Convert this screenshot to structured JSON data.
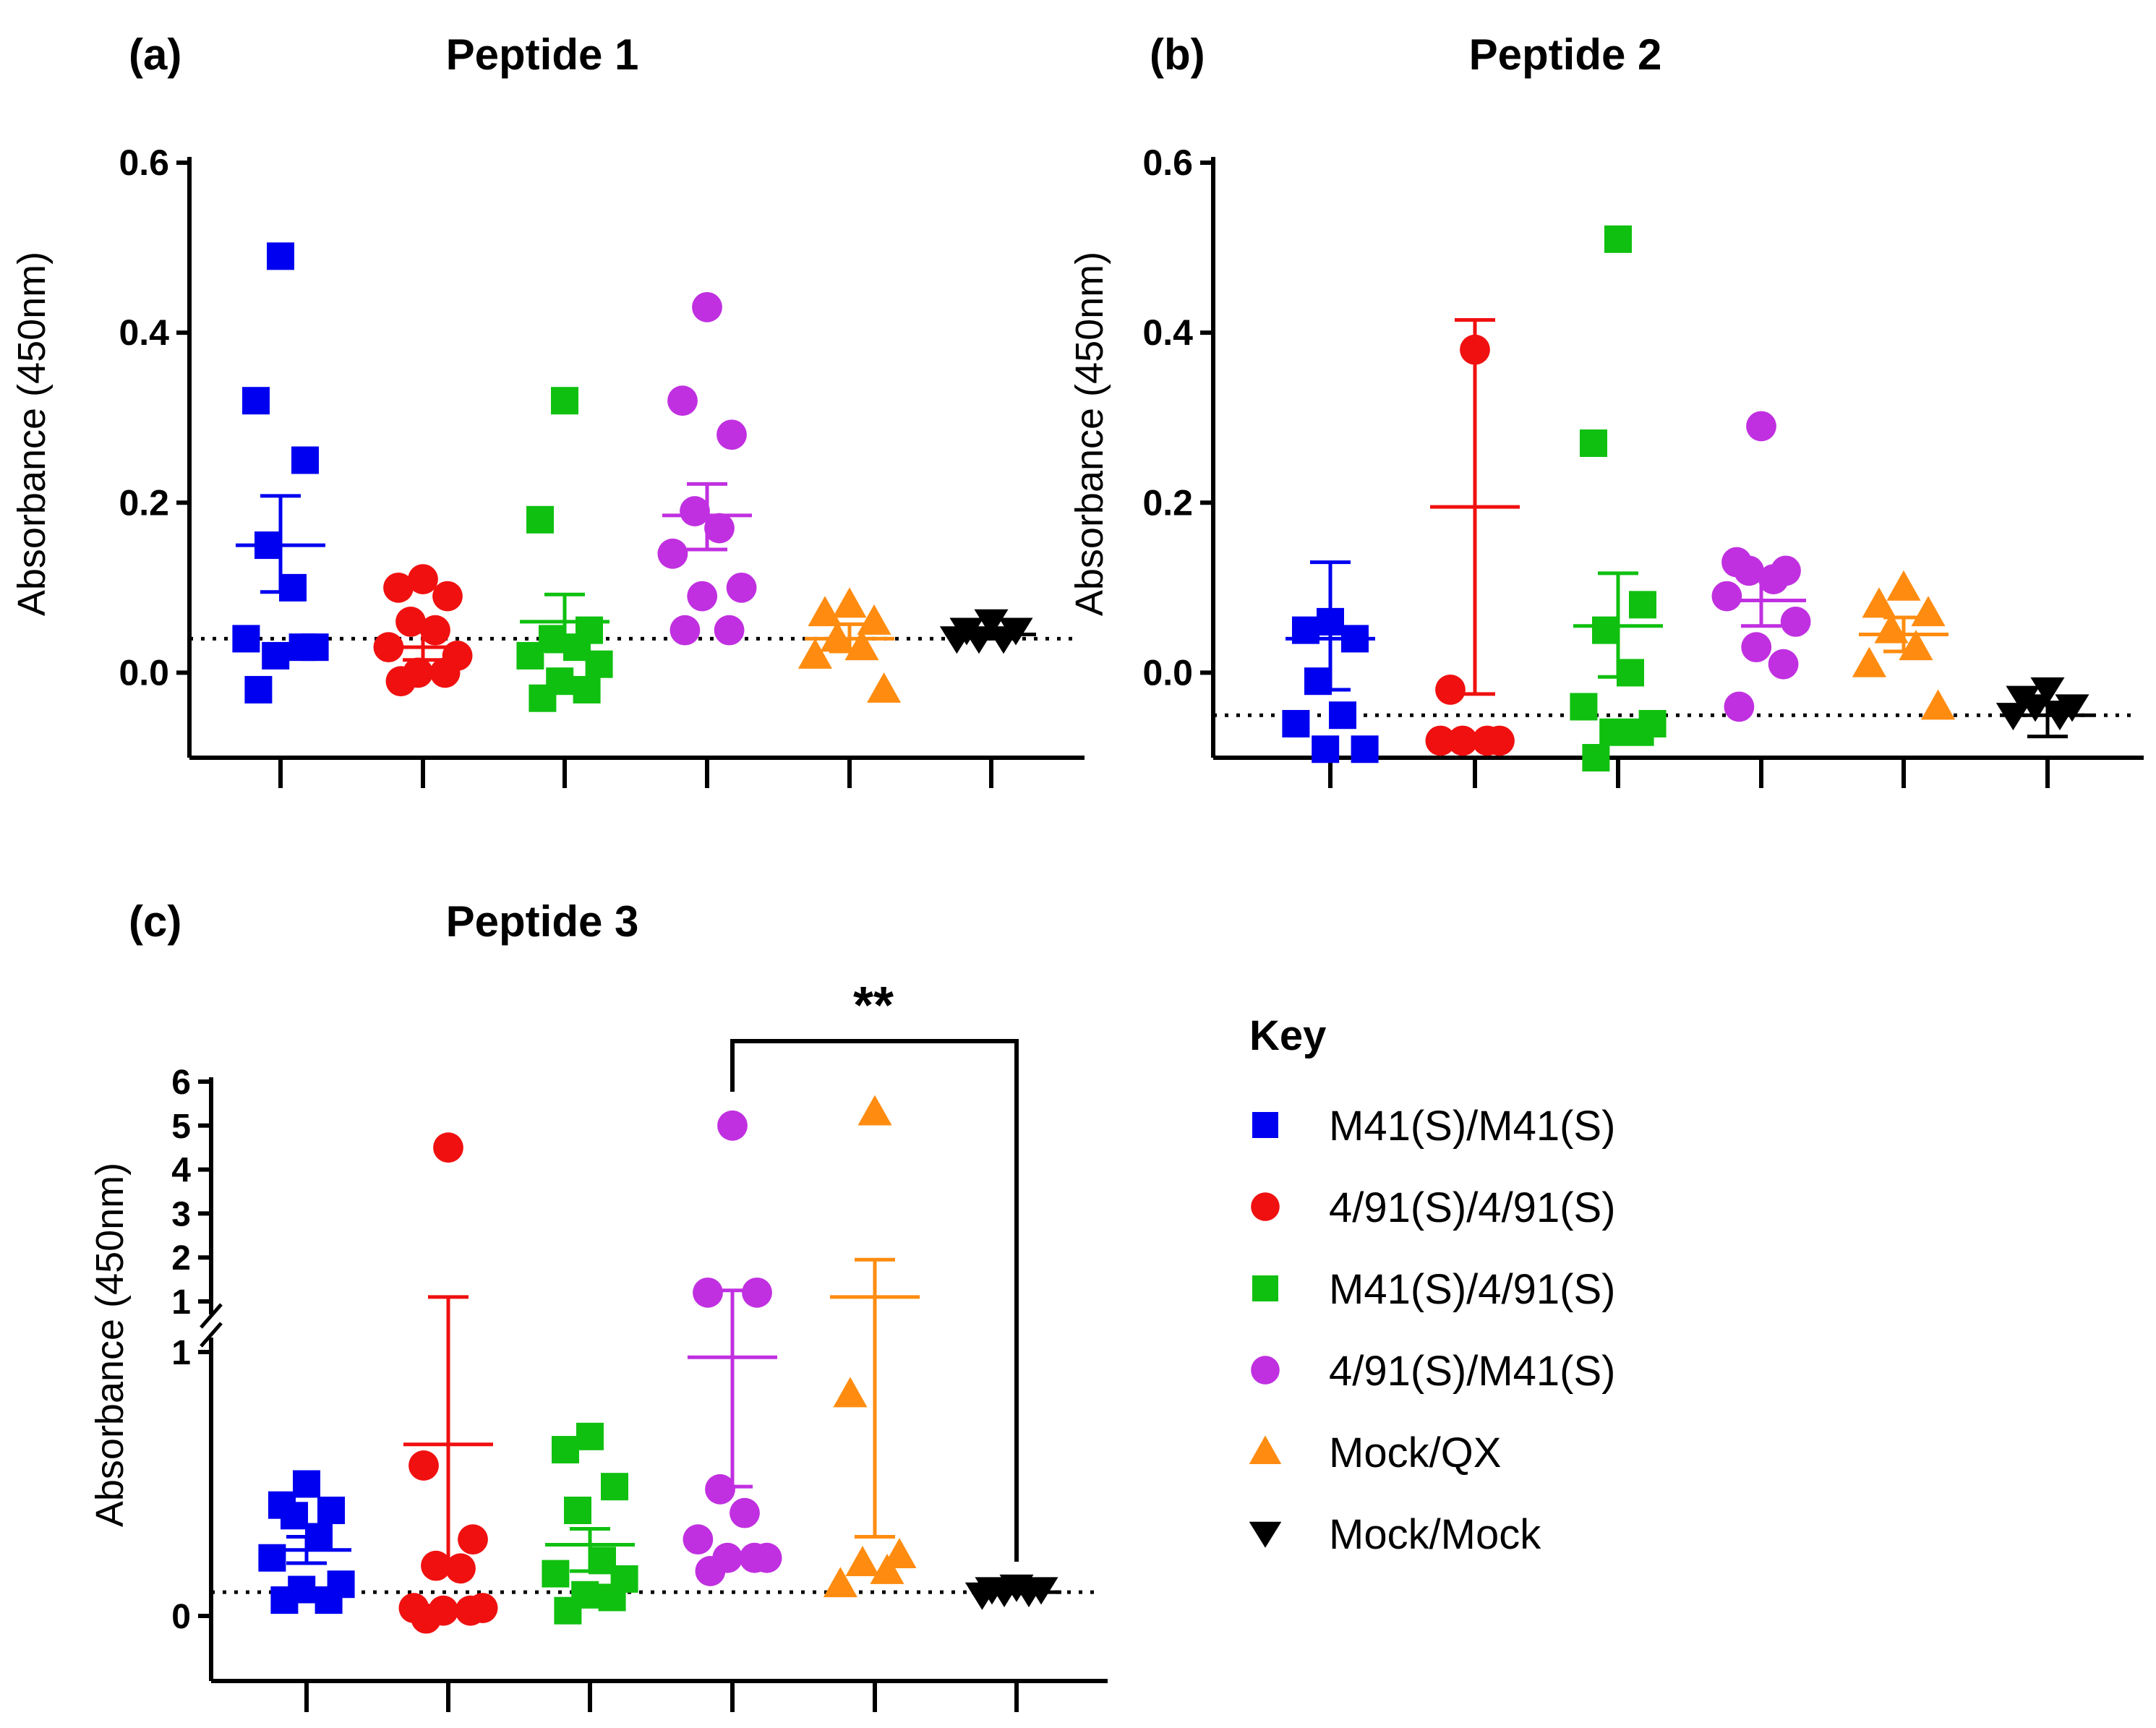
{
  "colors": {
    "M41(S)/M41(S)": "#0000f0",
    "4/91(S)/4/91(S)": "#f01010",
    "M41(S)/4/91(S)": "#10c010",
    "4/91(S)/M41(S)": "#c030e0",
    "Mock/QX": "#ff8c10",
    "Mock/Mock": "#000000"
  },
  "legend": {
    "title": "Key",
    "items": [
      {
        "label": "M41(S)/M41(S)",
        "marker": "square"
      },
      {
        "label": "4/91(S)/4/91(S)",
        "marker": "circle"
      },
      {
        "label": "M41(S)/4/91(S)",
        "marker": "square"
      },
      {
        "label": "4/91(S)/M41(S)",
        "marker": "circle"
      },
      {
        "label": "Mock/QX",
        "marker": "triangle-up"
      },
      {
        "label": "Mock/Mock",
        "marker": "triangle-down"
      }
    ]
  },
  "chart_data": [
    {
      "panel": "(a)",
      "title": "Peptide 1",
      "type": "scatter",
      "ylabel": "Absorbance (450nm)",
      "ylim": [
        -0.1,
        0.6
      ],
      "yticks": [
        "0.0",
        "0.2",
        "0.4",
        "0.6"
      ],
      "baseline": 0.04,
      "groups": [
        {
          "name": "M41(S)/M41(S)",
          "marker": "square",
          "values": [
            0.49,
            0.32,
            0.25,
            0.15,
            0.1,
            0.04,
            0.03,
            0.02,
            0.03,
            -0.02
          ],
          "mean": 0.15,
          "sem_low": 0.095,
          "sem_high": 0.208
        },
        {
          "name": "4/91(S)/4/91(S)",
          "marker": "circle",
          "values": [
            0.11,
            0.1,
            0.09,
            0.06,
            0.05,
            0.03,
            0.02,
            0.0,
            0.0,
            -0.01
          ],
          "mean": 0.03,
          "sem_low": 0.015,
          "sem_high": 0.048
        },
        {
          "name": "M41(S)/4/91(S)",
          "marker": "square",
          "values": [
            0.32,
            0.18,
            0.05,
            0.04,
            0.03,
            0.02,
            0.01,
            -0.01,
            -0.02,
            -0.03
          ],
          "mean": 0.06,
          "sem_low": 0.025,
          "sem_high": 0.092
        },
        {
          "name": "4/91(S)/M41(S)",
          "marker": "circle",
          "values": [
            0.43,
            0.32,
            0.28,
            0.19,
            0.17,
            0.14,
            0.1,
            0.09,
            0.05,
            0.05
          ],
          "mean": 0.185,
          "sem_low": 0.145,
          "sem_high": 0.222
        },
        {
          "name": "Mock/QX",
          "marker": "triangle-up",
          "values": [
            0.08,
            0.07,
            0.06,
            0.04,
            0.03,
            0.02,
            -0.02
          ],
          "mean": 0.04,
          "sem_low": 0.025,
          "sem_high": 0.057
        },
        {
          "name": "Mock/Mock",
          "marker": "triangle-down",
          "values": [
            0.06,
            0.05,
            0.05,
            0.04,
            0.04,
            0.04
          ],
          "mean": 0.045,
          "sem_low": 0.04,
          "sem_high": 0.05
        }
      ]
    },
    {
      "panel": "(b)",
      "title": "Peptide 2",
      "type": "scatter",
      "ylabel": "Absorbance (450nm)",
      "ylim": [
        -0.1,
        0.6
      ],
      "yticks": [
        "0.0",
        "0.2",
        "0.4",
        "0.6"
      ],
      "baseline": -0.05,
      "groups": [
        {
          "name": "M41(S)/M41(S)",
          "marker": "square",
          "values": [
            0.06,
            0.05,
            0.04,
            -0.01,
            -0.05,
            -0.06,
            -0.09,
            -0.09
          ],
          "mean": 0.04,
          "sem_low": -0.02,
          "sem_high": 0.13
        },
        {
          "name": "4/91(S)/4/91(S)",
          "marker": "circle",
          "values": [
            0.38,
            -0.02,
            -0.08,
            -0.08,
            -0.08,
            -0.08
          ],
          "mean": 0.195,
          "sem_low": -0.025,
          "sem_high": 0.415
        },
        {
          "name": "M41(S)/4/91(S)",
          "marker": "square",
          "values": [
            0.51,
            0.27,
            0.08,
            0.05,
            0.0,
            -0.04,
            -0.06,
            -0.07,
            -0.07,
            -0.1
          ],
          "mean": 0.055,
          "sem_low": -0.005,
          "sem_high": 0.117
        },
        {
          "name": "4/91(S)/M41(S)",
          "marker": "circle",
          "values": [
            0.29,
            0.13,
            0.12,
            0.12,
            0.11,
            0.09,
            0.06,
            0.03,
            0.01,
            -0.04
          ],
          "mean": 0.085,
          "sem_low": 0.055,
          "sem_high": 0.11
        },
        {
          "name": "Mock/QX",
          "marker": "triangle-up",
          "values": [
            0.1,
            0.08,
            0.07,
            0.05,
            0.03,
            0.01,
            -0.04
          ],
          "mean": 0.045,
          "sem_low": 0.025,
          "sem_high": 0.065
        },
        {
          "name": "Mock/Mock",
          "marker": "triangle-down",
          "values": [
            -0.02,
            -0.03,
            -0.04,
            -0.04,
            -0.05,
            -0.05
          ],
          "mean": -0.05,
          "sem_low": -0.075,
          "sem_high": -0.035
        }
      ]
    },
    {
      "panel": "(c)",
      "title": "Peptide 3",
      "type": "scatter",
      "ylabel": "Absorbance (450nm)",
      "y_axis_break": true,
      "ylim_lower": [
        -0.2,
        1.0
      ],
      "ylim_upper": [
        1,
        6
      ],
      "yticks_lower": [
        "0",
        "1"
      ],
      "yticks_upper": [
        "1",
        "2",
        "3",
        "4",
        "5",
        "6"
      ],
      "baseline": 0.09,
      "significance": {
        "from": "4/91(S)/M41(S)",
        "to": "Mock/Mock",
        "label": "**"
      },
      "groups": [
        {
          "name": "M41(S)/M41(S)",
          "marker": "square",
          "values": [
            0.5,
            0.42,
            0.4,
            0.38,
            0.3,
            0.22,
            0.12,
            0.1,
            0.06,
            0.06
          ],
          "mean": 0.25,
          "sem_low": 0.2,
          "sem_high": 0.3
        },
        {
          "name": "4/91(S)/4/91(S)",
          "marker": "circle",
          "values": [
            4.5,
            0.57,
            0.29,
            0.19,
            0.18,
            0.03,
            0.03,
            0.02,
            0.02,
            -0.01
          ],
          "mean": 0.65,
          "sem_low": 0.2,
          "sem_high": 1.1
        },
        {
          "name": "M41(S)/4/91(S)",
          "marker": "square",
          "values": [
            0.68,
            0.63,
            0.49,
            0.4,
            0.21,
            0.16,
            0.14,
            0.08,
            0.07,
            0.02
          ],
          "mean": 0.27,
          "sem_low": 0.17,
          "sem_high": 0.33
        },
        {
          "name": "4/91(S)/M41(S)",
          "marker": "circle",
          "values": [
            5.0,
            1.2,
            1.2,
            0.48,
            0.39,
            0.29,
            0.22,
            0.22,
            0.22,
            0.17
          ],
          "mean": 0.98,
          "sem_low": 0.49,
          "sem_high": 1.25
        },
        {
          "name": "Mock/QX",
          "marker": "triangle-up",
          "values": [
            5.3,
            0.84,
            0.23,
            0.2,
            0.17,
            0.12
          ],
          "mean": 1.1,
          "sem_low": 0.3,
          "sem_high": 1.95
        },
        {
          "name": "Mock/Mock",
          "marker": "triangle-down",
          "values": [
            0.11,
            0.1,
            0.1,
            0.09,
            0.09,
            0.08
          ],
          "mean": 0.09,
          "sem_low": 0.085,
          "sem_high": 0.11
        }
      ]
    }
  ]
}
